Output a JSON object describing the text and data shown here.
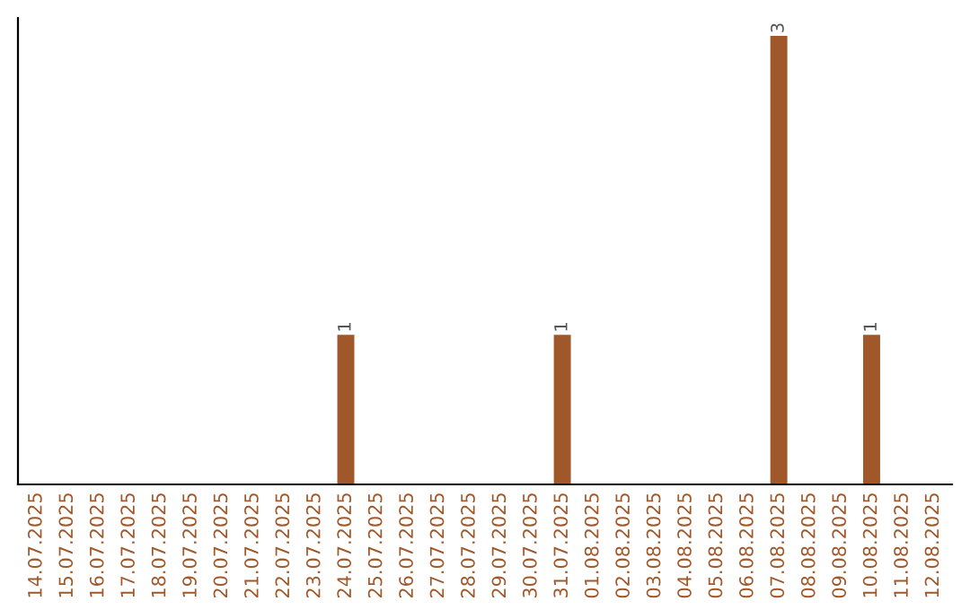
{
  "chart_data": {
    "type": "bar",
    "categories": [
      "14.07.2025",
      "15.07.2025",
      "16.07.2025",
      "17.07.2025",
      "18.07.2025",
      "19.07.2025",
      "20.07.2025",
      "21.07.2025",
      "22.07.2025",
      "23.07.2025",
      "24.07.2025",
      "25.07.2025",
      "26.07.2025",
      "27.07.2025",
      "28.07.2025",
      "29.07.2025",
      "30.07.2025",
      "31.07.2025",
      "01.08.2025",
      "02.08.2025",
      "03.08.2025",
      "04.08.2025",
      "05.08.2025",
      "06.08.2025",
      "07.08.2025",
      "08.08.2025",
      "09.08.2025",
      "10.08.2025",
      "11.08.2025",
      "12.08.2025"
    ],
    "values": [
      0,
      0,
      0,
      0,
      0,
      0,
      0,
      0,
      0,
      0,
      1,
      0,
      0,
      0,
      0,
      0,
      0,
      1,
      0,
      0,
      0,
      0,
      0,
      0,
      3,
      0,
      0,
      1,
      0,
      0
    ],
    "value_labels": [
      null,
      null,
      null,
      null,
      null,
      null,
      null,
      null,
      null,
      null,
      "1",
      null,
      null,
      null,
      null,
      null,
      null,
      "1",
      null,
      null,
      null,
      null,
      null,
      null,
      "3",
      null,
      null,
      "1",
      null,
      null
    ],
    "color": "#a0582a",
    "tick_labels": "x",
    "grid": false
  }
}
